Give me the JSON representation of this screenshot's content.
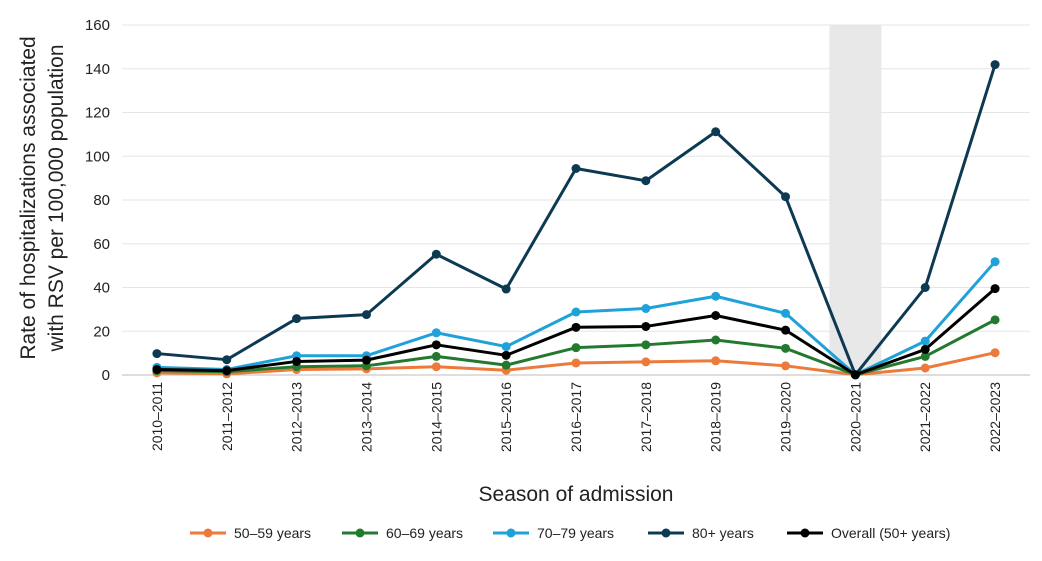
{
  "chart_data": {
    "type": "line",
    "title": "",
    "xlabel": "Season of admission",
    "ylabel_line1": "Rate of hospitalizations associated",
    "ylabel_line2": "with RSV per 100,000 population",
    "ylim": [
      0,
      160
    ],
    "yticks": [
      0,
      20,
      40,
      60,
      80,
      100,
      120,
      140,
      160
    ],
    "grid": true,
    "legend_position": "bottom",
    "highlight_category": "2020–2021",
    "highlight_color": "#e8e8e8",
    "categories": [
      "2010–2011",
      "2011–2012",
      "2012–2013",
      "2013–2014",
      "2014–2015",
      "2015–2016",
      "2016–2017",
      "2017–2018",
      "2018–2019",
      "2019–2020",
      "2020–2021",
      "2021–2022",
      "2022–2023"
    ],
    "series": [
      {
        "name": "50–59 years",
        "color": "#ec7a3a",
        "values": [
          1.0,
          0.5,
          2.5,
          2.8,
          3.8,
          2.2,
          5.5,
          6.0,
          6.5,
          4.2,
          0.1,
          3.2,
          10.2
        ]
      },
      {
        "name": "60–69 years",
        "color": "#237a2f",
        "values": [
          2.0,
          1.5,
          3.8,
          4.2,
          8.5,
          4.5,
          12.5,
          13.8,
          16.0,
          12.2,
          0.1,
          8.5,
          25.2
        ]
      },
      {
        "name": "70–79 years",
        "color": "#1fa1d9",
        "values": [
          3.5,
          2.5,
          8.8,
          8.8,
          19.3,
          13.0,
          28.8,
          30.4,
          36.0,
          28.2,
          0.1,
          15.5,
          51.8
        ]
      },
      {
        "name": "80+ years",
        "color": "#0d3a52",
        "values": [
          9.8,
          7.0,
          25.8,
          27.6,
          55.2,
          39.3,
          94.4,
          88.8,
          111.2,
          81.5,
          0.1,
          40.0,
          141.9
        ]
      },
      {
        "name": "Overall (50+ years)",
        "color": "#000000",
        "values": [
          2.5,
          2.0,
          6.2,
          6.8,
          13.8,
          9.0,
          21.8,
          22.2,
          27.2,
          20.5,
          0.1,
          11.7,
          39.5
        ]
      }
    ]
  }
}
